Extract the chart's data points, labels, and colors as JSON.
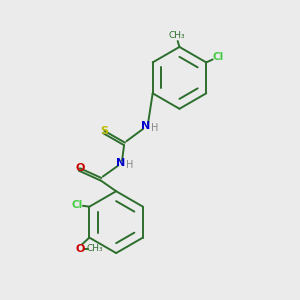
{
  "background_color": "#ebebeb",
  "atom_colors": {
    "C": "#2d6e2d",
    "N": "#0000cc",
    "O": "#cc0000",
    "S": "#bbbb00",
    "Cl": "#44cc44",
    "H": "#888888"
  },
  "bond_color": "#2d6e2d",
  "figsize": [
    3.0,
    3.0
  ],
  "dpi": 100
}
